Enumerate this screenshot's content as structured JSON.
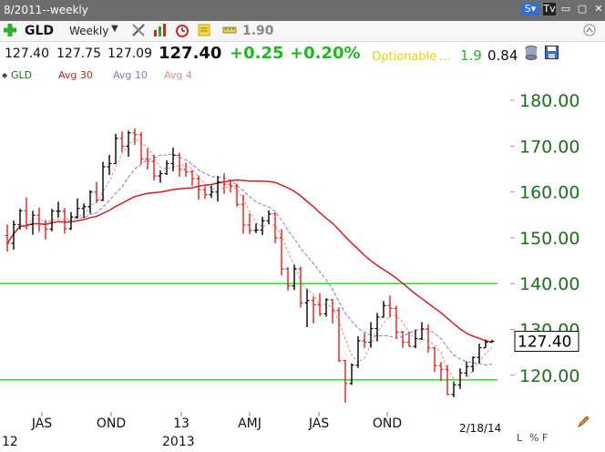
{
  "window": {
    "title": "8/2011--weekly"
  },
  "toolbar": {
    "symbol": "GLD",
    "period": "Weekly",
    "indicator_value": "1.90"
  },
  "quote": {
    "open": "127.40",
    "high": "127.75",
    "low": "127.09",
    "last": "127.40",
    "change": "+0.25",
    "change_pct": "+0.20%",
    "optionable": "Optionable",
    "ellipsis": "...",
    "extra1": "1.9",
    "extra2": "0.84"
  },
  "legend": [
    {
      "label": "GLD",
      "color": "#1a6e1a"
    },
    {
      "label": "Avg 30",
      "color": "#d02020"
    },
    {
      "label": "Avg 10",
      "color": "#7a7ae0"
    },
    {
      "label": "Avg 4",
      "color": "#e58a8a"
    }
  ],
  "bottom": {
    "labels": [
      "L",
      "%",
      "F"
    ]
  },
  "chart_data": {
    "type": "ohlc",
    "ylim": [
      112,
      184
    ],
    "y_ticks": [
      "180.00",
      "170.00",
      "160.00",
      "150.00",
      "140.00",
      "130.00",
      "120.00"
    ],
    "x_ticks": [
      "JAS",
      "OND",
      "13",
      "AMJ",
      "JAS",
      "OND",
      "2/18/14"
    ],
    "x_sub_labels": [
      "12",
      "2013"
    ],
    "last_price_label": "127.40",
    "last_price": 127.4,
    "horizontal_lines": [
      140.0,
      119.0
    ],
    "colors": {
      "up": "#000000",
      "down": "#e02020",
      "ma30": "#d02020",
      "ma10": "#7a7ae0",
      "ma4": "#e58a8a",
      "hline": "#2ee82e",
      "axis_text": "#1e6e1e"
    },
    "bars": [
      [
        150.5,
        152.9,
        147.0,
        148.8
      ],
      [
        148.8,
        153.8,
        147.4,
        152.9
      ],
      [
        152.9,
        156.3,
        151.8,
        155.9
      ],
      [
        155.9,
        158.8,
        151.8,
        152.9
      ],
      [
        152.9,
        155.9,
        150.7,
        154.9
      ],
      [
        154.9,
        156.6,
        151.3,
        153.0
      ],
      [
        153.0,
        153.9,
        149.6,
        151.9
      ],
      [
        151.9,
        156.3,
        151.4,
        155.8
      ],
      [
        155.8,
        157.9,
        154.4,
        155.8
      ],
      [
        155.8,
        156.5,
        150.9,
        152.0
      ],
      [
        152.0,
        155.6,
        151.7,
        154.5
      ],
      [
        154.5,
        158.6,
        154.2,
        156.4
      ],
      [
        156.4,
        157.5,
        154.3,
        156.8
      ],
      [
        156.8,
        160.4,
        155.3,
        160.0
      ],
      [
        160.0,
        162.2,
        157.6,
        158.2
      ],
      [
        158.2,
        166.6,
        158.0,
        165.5
      ],
      [
        165.5,
        168.1,
        163.7,
        166.2
      ],
      [
        166.2,
        172.7,
        166.1,
        171.7
      ],
      [
        171.7,
        173.2,
        168.7,
        170.0
      ],
      [
        170.0,
        173.4,
        167.7,
        172.9
      ],
      [
        172.9,
        173.9,
        170.3,
        172.5
      ],
      [
        172.5,
        173.1,
        166.1,
        167.2
      ],
      [
        167.2,
        169.5,
        164.9,
        166.7
      ],
      [
        166.7,
        168.1,
        162.5,
        163.5
      ],
      [
        163.5,
        164.7,
        162.0,
        164.0
      ],
      [
        164.0,
        166.9,
        163.7,
        166.2
      ],
      [
        166.2,
        169.7,
        164.5,
        168.0
      ],
      [
        168.0,
        168.6,
        163.3,
        164.9
      ],
      [
        164.9,
        166.4,
        163.3,
        164.4
      ],
      [
        164.4,
        164.8,
        161.3,
        162.9
      ],
      [
        162.9,
        163.6,
        158.3,
        160.5
      ],
      [
        160.5,
        161.2,
        158.5,
        159.4
      ],
      [
        159.4,
        161.4,
        158.7,
        160.0
      ],
      [
        160.0,
        163.5,
        157.9,
        162.2
      ],
      [
        162.2,
        164.1,
        159.6,
        161.7
      ],
      [
        161.7,
        162.7,
        159.9,
        161.3
      ],
      [
        161.3,
        161.8,
        156.8,
        157.3
      ],
      [
        157.3,
        159.4,
        150.9,
        152.8
      ],
      [
        152.8,
        155.4,
        150.8,
        151.6
      ],
      [
        151.6,
        153.1,
        151.0,
        151.7
      ],
      [
        151.7,
        154.6,
        150.6,
        153.7
      ],
      [
        153.7,
        156.0,
        153.0,
        155.2
      ],
      [
        155.2,
        155.6,
        148.8,
        150.0
      ],
      [
        150.0,
        151.9,
        141.8,
        143.2
      ],
      [
        143.2,
        143.6,
        138.5,
        139.5
      ],
      [
        139.5,
        144.1,
        138.6,
        143.2
      ],
      [
        143.2,
        143.7,
        134.8,
        135.8
      ],
      [
        135.8,
        138.8,
        130.5,
        136.3
      ],
      [
        136.3,
        137.2,
        131.3,
        135.4
      ],
      [
        135.4,
        137.9,
        132.9,
        133.4
      ],
      [
        133.4,
        136.8,
        132.8,
        136.5
      ],
      [
        136.5,
        136.6,
        131.3,
        134.1
      ],
      [
        134.1,
        134.8,
        122.9,
        123.2
      ],
      [
        123.2,
        123.4,
        114.0,
        118.2
      ],
      [
        118.2,
        122.6,
        117.9,
        122.2
      ],
      [
        122.2,
        128.5,
        121.6,
        127.5
      ],
      [
        127.5,
        129.2,
        125.9,
        127.2
      ],
      [
        127.2,
        131.6,
        126.0,
        130.2
      ],
      [
        130.2,
        133.6,
        127.4,
        132.7
      ],
      [
        132.7,
        136.2,
        132.6,
        135.2
      ],
      [
        135.2,
        137.4,
        132.6,
        134.6
      ],
      [
        134.6,
        135.2,
        128.1,
        129.4
      ],
      [
        129.4,
        129.7,
        126.0,
        127.2
      ],
      [
        127.2,
        129.5,
        126.2,
        126.3
      ],
      [
        126.3,
        130.0,
        125.9,
        128.0
      ],
      [
        128.0,
        131.6,
        127.7,
        130.1
      ],
      [
        130.1,
        131.1,
        124.9,
        126.0
      ],
      [
        126.0,
        126.1,
        120.7,
        122.1
      ],
      [
        122.1,
        122.9,
        118.7,
        121.3
      ],
      [
        121.3,
        122.2,
        115.7,
        115.8
      ],
      [
        115.8,
        118.6,
        115.2,
        117.9
      ],
      [
        117.9,
        121.5,
        117.0,
        120.5
      ],
      [
        120.5,
        123.0,
        119.7,
        121.9
      ],
      [
        121.9,
        124.1,
        120.7,
        123.9
      ],
      [
        123.9,
        126.9,
        122.6,
        126.0
      ],
      [
        126.0,
        127.8,
        126.0,
        127.2
      ],
      [
        127.2,
        127.75,
        127.09,
        127.4
      ]
    ]
  }
}
